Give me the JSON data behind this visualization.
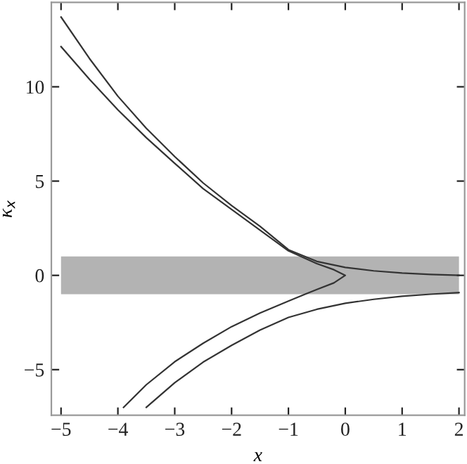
{
  "chart_data": {
    "type": "line",
    "xlabel": "x",
    "ylabel": "κ$_{x}$",
    "xlim": [
      -5.17,
      2.1
    ],
    "ylim": [
      -7.42,
      14.48
    ],
    "xticks": [
      {
        "value": -5,
        "label": "−5"
      },
      {
        "value": -4,
        "label": "−4"
      },
      {
        "value": -3,
        "label": "−3"
      },
      {
        "value": -2,
        "label": "−2"
      },
      {
        "value": -1,
        "label": "−1"
      },
      0,
      1,
      2
    ],
    "yticks": [
      {
        "value": -5,
        "label": "−5"
      },
      0,
      5,
      10
    ],
    "bands": [
      {
        "axis": "y",
        "from": -1,
        "to": 1,
        "color": "#b3b3b3"
      }
    ],
    "grid": false,
    "legend": false,
    "marker": "none",
    "line_style": "solid",
    "series": [
      {
        "color": "#333333",
        "x": [
          -5,
          -4.5,
          -4,
          -3.5,
          -3,
          -2.5,
          -2,
          -1.5,
          -1,
          -0.5,
          0,
          0.5,
          1,
          1.5,
          2
        ],
        "values": [
          13.7,
          11.5,
          9.5,
          7.8,
          6.3,
          4.9,
          3.7,
          2.6,
          1.36,
          0.74,
          0.42,
          0.24,
          0.12,
          0.05,
          0.0
        ]
      },
      {
        "color": "#333333",
        "x": [
          -5,
          -4.5,
          -4,
          -3.5,
          -3,
          -2.5,
          -2,
          -1.5,
          -1,
          -0.5,
          -0.2,
          0,
          -0.2,
          -0.5,
          -0.7,
          -1,
          -1.5,
          -2,
          -2.5,
          -3,
          -3.5,
          -3.9
        ],
        "values": [
          12.13,
          10.4,
          8.78,
          7.3,
          5.94,
          4.6,
          3.5,
          2.4,
          1.3,
          0.62,
          0.3,
          0,
          -0.4,
          -0.75,
          -0.99,
          -1.36,
          -2.0,
          -2.72,
          -3.6,
          -4.58,
          -5.8,
          -7.0
        ]
      },
      {
        "color": "#333333",
        "x": [
          -3.5,
          -3,
          -2.5,
          -2,
          -1.5,
          -1,
          -0.5,
          0,
          0.5,
          1,
          1.5,
          2
        ],
        "values": [
          -7.0,
          -5.69,
          -4.6,
          -3.71,
          -2.9,
          -2.23,
          -1.8,
          -1.48,
          -1.27,
          -1.11,
          -1.0,
          -0.91
        ]
      }
    ]
  }
}
